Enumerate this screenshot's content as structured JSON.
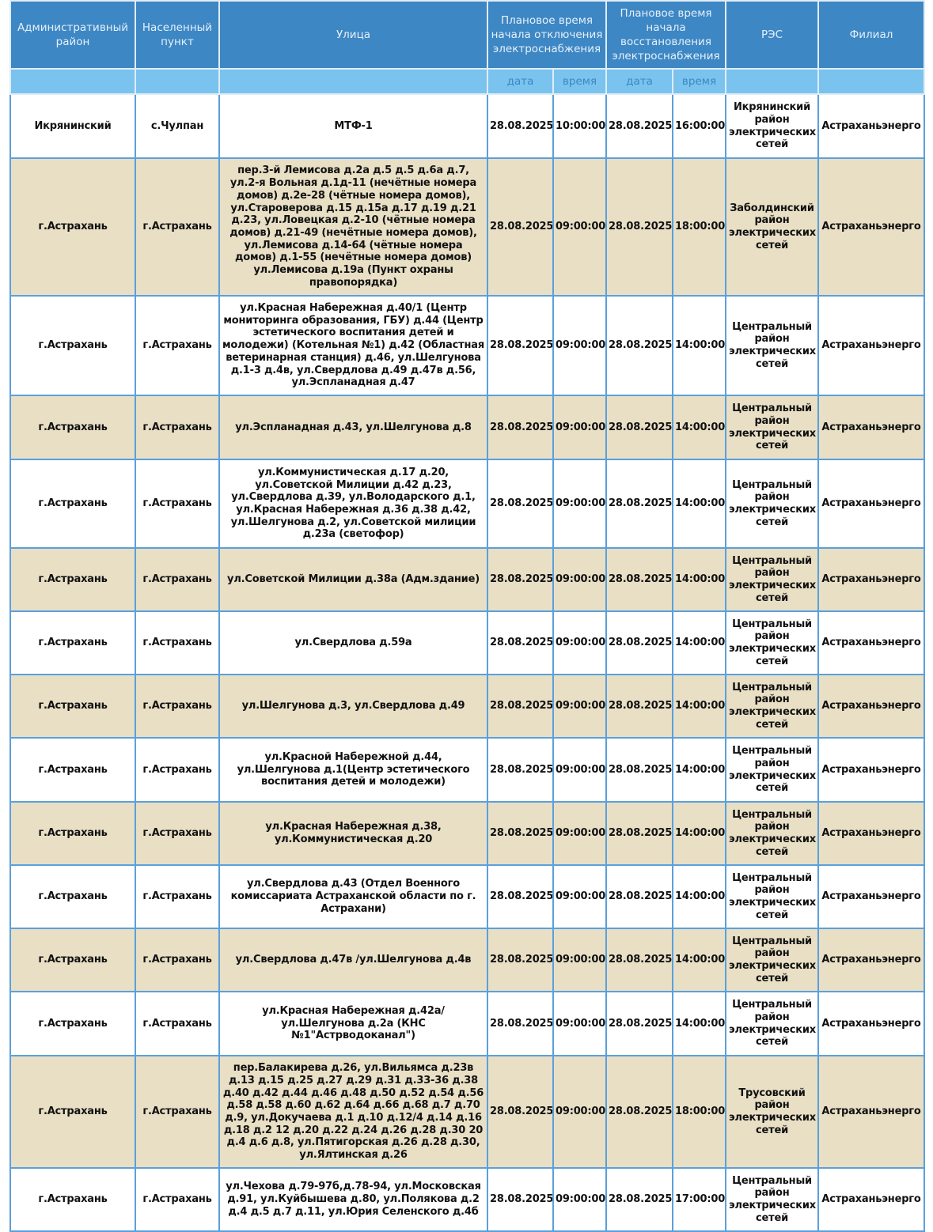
{
  "header": {
    "admin_district": "Административный район",
    "locality": "Населенный пункт",
    "street": "Улица",
    "off_time": "Плановое время начала отключения электроснабжения",
    "restore_time": "Плановое время начала восстановления электроснабжения",
    "res": "РЭС",
    "branch": "Филиал",
    "date": "дата",
    "time": "время"
  },
  "colors": {
    "header_bg": "#3d87c4",
    "subheader_bg": "#79c3ee",
    "stripe": "#e8dfc5",
    "border": "#5aa0dc"
  },
  "rows": [
    [
      "Икрянинский",
      "с.Чулпан",
      "МТФ-1",
      "28.08.2025",
      "10:00:00",
      "28.08.2025",
      "16:00:00",
      "Икрянинский район электрических сетей",
      "Астраханьэнерго"
    ],
    [
      "г.Астрахань",
      "г.Астрахань",
      "пер.3-й Лемисова д.2а д.5 д.5 д.6а д.7, ул.2-я Вольная д.1д-11 (нечётные номера домов) д.2е-28 (чётные номера домов), ул.Староверова д.15 д.15а д.17 д.19 д.21 д.23, ул.Ловецкая д.2-10 (чётные номера домов) д.21-49 (нечётные номера домов), ул.Лемисова д.14-64 (чётные номера домов) д.1-55 (нечётные номера домов) ул.Лемисова д.19а (Пункт охраны правопорядка)",
      "28.08.2025",
      "09:00:00",
      "28.08.2025",
      "18:00:00",
      "Заболдинский район электрических сетей",
      "Астраханьэнерго"
    ],
    [
      "г.Астрахань",
      "г.Астрахань",
      "ул.Красная Набережная д.40/1 (Центр мониторинга образования, ГБУ) д.44 (Центр эстетического воспитания детей и молодежи) (Котельная №1) д.42 (Областная ветеринарная станция) д.46, ул.Шелгунова д.1-3 д.4в, ул.Свердлова д.49 д.47в д.56, ул.Эспланадная д.47",
      "28.08.2025",
      "09:00:00",
      "28.08.2025",
      "14:00:00",
      "Центральный район электрических сетей",
      "Астраханьэнерго"
    ],
    [
      "г.Астрахань",
      "г.Астрахань",
      "ул.Эспланадная д.43, ул.Шелгунова д.8",
      "28.08.2025",
      "09:00:00",
      "28.08.2025",
      "14:00:00",
      "Центральный район электрических сетей",
      "Астраханьэнерго"
    ],
    [
      "г.Астрахань",
      "г.Астрахань",
      "ул.Коммунистическая д.17 д.20, ул.Советской Милиции д.42 д.23, ул.Свердлова д.39, ул.Володарского д.1, ул.Красная Набережная д.36 д.38 д.42, ул.Шелгунова д.2, ул.Советской милиции д.23а (светофор)",
      "28.08.2025",
      "09:00:00",
      "28.08.2025",
      "14:00:00",
      "Центральный район электрических сетей",
      "Астраханьэнерго"
    ],
    [
      "г.Астрахань",
      "г.Астрахань",
      "ул.Советской Милиции д.38а (Адм.здание)",
      "28.08.2025",
      "09:00:00",
      "28.08.2025",
      "14:00:00",
      "Центральный район электрических сетей",
      "Астраханьэнерго"
    ],
    [
      "г.Астрахань",
      "г.Астрахань",
      "ул.Свердлова д.59а",
      "28.08.2025",
      "09:00:00",
      "28.08.2025",
      "14:00:00",
      "Центральный район электрических сетей",
      "Астраханьэнерго"
    ],
    [
      "г.Астрахань",
      "г.Астрахань",
      "ул.Шелгунова д.3, ул.Свердлова д.49",
      "28.08.2025",
      "09:00:00",
      "28.08.2025",
      "14:00:00",
      "Центральный район электрических сетей",
      "Астраханьэнерго"
    ],
    [
      "г.Астрахань",
      "г.Астрахань",
      "ул.Красной Набережной д.44, ул.Шелгунова д.1(Центр эстетического воспитания детей и молодежи)",
      "28.08.2025",
      "09:00:00",
      "28.08.2025",
      "14:00:00",
      "Центральный район электрических сетей",
      "Астраханьэнерго"
    ],
    [
      "г.Астрахань",
      "г.Астрахань",
      "ул.Красная Набережная д.38, ул.Коммунистическая д.20",
      "28.08.2025",
      "09:00:00",
      "28.08.2025",
      "14:00:00",
      "Центральный район электрических сетей",
      "Астраханьэнерго"
    ],
    [
      "г.Астрахань",
      "г.Астрахань",
      "ул.Свердлова д.43 (Отдел Военного комиссариата Астраханской области по г. Астрахани)",
      "28.08.2025",
      "09:00:00",
      "28.08.2025",
      "14:00:00",
      "Центральный район электрических сетей",
      "Астраханьэнерго"
    ],
    [
      "г.Астрахань",
      "г.Астрахань",
      "ул.Свердлова д.47в /ул.Шелгунова д.4в",
      "28.08.2025",
      "09:00:00",
      "28.08.2025",
      "14:00:00",
      "Центральный район электрических сетей",
      "Астраханьэнерго"
    ],
    [
      "г.Астрахань",
      "г.Астрахань",
      "ул.Красная Набережная д.42а/ ул.Шелгунова д.2а (КНС №1\"Астрводоканал\")",
      "28.08.2025",
      "09:00:00",
      "28.08.2025",
      "14:00:00",
      "Центральный район электрических сетей",
      "Астраханьэнерго"
    ],
    [
      "г.Астрахань",
      "г.Астрахань",
      "пер.Балакирева д.26, ул.Вильямса д.23в д.13 д.15 д.25 д.27 д.29 д.31 д.33-36 д.38 д.40 д.42 д.44 д.46 д.48 д.50 д.52 д.54 д.56 д.58 д.58 д.60 д.62 д.64 д.66 д.68 д.7 д.70 д.9, ул.Докучаева д.1 д.10 д.12/4 д.14 д.16 д.18 д.2 12 д.20 д.22 д.24 д.26 д.28 д.30 20 д.4 д.6 д.8, ул.Пятигорская д.26 д.28 д.30, ул.Ялтинская д.26",
      "28.08.2025",
      "09:00:00",
      "28.08.2025",
      "18:00:00",
      "Трусовский район электрических сетей",
      "Астраханьэнерго"
    ],
    [
      "г.Астрахань",
      "г.Астрахань",
      "ул.Чехова д.79-97б,д.78-94, ул.Московская д.91, ул.Куйбышева д.80, ул.Полякова д.2 д.4 д.5 д.7 д.11, ул.Юрия Селенского д.4б",
      "28.08.2025",
      "09:00:00",
      "28.08.2025",
      "17:00:00",
      "Центральный район электрических сетей",
      "Астраханьэнерго"
    ]
  ]
}
